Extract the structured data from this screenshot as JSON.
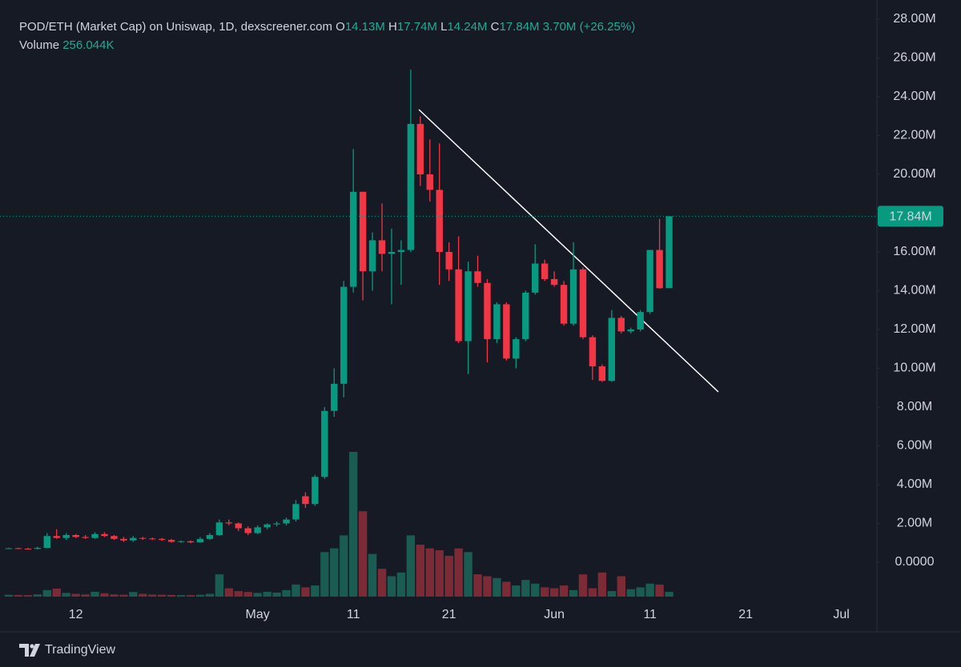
{
  "header": {
    "title": "POD/ETH (Market Cap) on Uniswap, 1D, dexscreener.com",
    "ohlc": [
      {
        "key": "O",
        "value": "14.13M"
      },
      {
        "key": "H",
        "value": "17.74M"
      },
      {
        "key": "L",
        "value": "14.24M"
      },
      {
        "key": "C",
        "value": "17.84M"
      }
    ],
    "change": "3.70M (+26.25%)",
    "volume_key": "Volume",
    "volume_value": "256.044K"
  },
  "chart_data": {
    "type": "candlestick",
    "categories": [
      null,
      null,
      null,
      null,
      null,
      null,
      null,
      "12",
      null,
      null,
      null,
      null,
      null,
      null,
      null,
      null,
      null,
      null,
      null,
      null,
      null,
      null,
      null,
      null,
      null,
      null,
      "May",
      null,
      null,
      null,
      null,
      null,
      null,
      null,
      null,
      null,
      "11",
      null,
      null,
      null,
      null,
      null,
      null,
      null,
      null,
      null,
      "21",
      null,
      null,
      null,
      null,
      null,
      null,
      null,
      null,
      null,
      null,
      "Jun",
      null,
      null,
      null,
      null,
      null,
      null,
      null,
      null,
      null,
      "11",
      null,
      null,
      null,
      null,
      null,
      null,
      null,
      null,
      null,
      "21",
      null,
      null,
      null,
      null,
      null,
      null,
      null,
      null,
      null,
      "Jul",
      null,
      null
    ],
    "open": [
      0.7,
      0.72,
      0.7,
      0.69,
      0.74,
      1.35,
      1.25,
      1.4,
      1.3,
      1.25,
      1.45,
      1.35,
      1.2,
      1.12,
      1.25,
      1.22,
      1.2,
      1.15,
      1.05,
      1.08,
      1.02,
      1.2,
      1.4,
      2.05,
      2.0,
      1.75,
      1.5,
      1.8,
      1.95,
      2.0,
      2.2,
      3.4,
      3.0,
      4.4,
      7.8,
      9.2,
      14.2,
      19.1,
      15.0,
      16.6,
      15.9,
      16.0,
      16.1,
      22.6,
      20.0,
      19.2,
      16.0,
      15.1,
      11.4,
      15.0,
      14.4,
      11.5,
      13.3,
      10.5,
      11.5,
      13.9,
      15.4,
      14.6,
      14.3,
      12.3,
      15.1,
      11.6,
      10.1,
      9.35,
      12.6,
      11.9,
      12.0,
      12.9,
      16.1,
      14.13,
      null,
      null,
      null,
      null,
      null,
      null,
      null,
      null,
      null,
      null,
      null,
      null,
      null,
      null,
      null,
      null,
      null,
      null,
      null,
      null
    ],
    "high": [
      0.75,
      0.75,
      0.74,
      0.8,
      1.5,
      1.7,
      1.5,
      1.45,
      1.4,
      1.55,
      1.55,
      1.4,
      1.3,
      1.35,
      1.3,
      1.28,
      1.25,
      1.2,
      1.12,
      1.12,
      1.3,
      1.5,
      2.2,
      2.2,
      2.05,
      1.85,
      1.9,
      2.0,
      2.1,
      2.3,
      3.2,
      3.6,
      4.5,
      8.0,
      10.0,
      14.5,
      21.3,
      19.1,
      17.0,
      18.5,
      17.2,
      16.6,
      25.4,
      23.0,
      21.8,
      21.6,
      16.5,
      16.8,
      15.5,
      15.8,
      14.6,
      13.4,
      13.4,
      11.6,
      14.0,
      16.4,
      15.6,
      15.0,
      14.5,
      16.5,
      15.2,
      11.7,
      10.2,
      13.0,
      12.7,
      12.1,
      13.0,
      16.1,
      17.7,
      17.74,
      null,
      null,
      null,
      null,
      null,
      null,
      null,
      null,
      null,
      null,
      null,
      null,
      null,
      null,
      null,
      null,
      null,
      null,
      null,
      null
    ],
    "low": [
      0.68,
      0.68,
      0.67,
      0.66,
      0.72,
      1.2,
      1.15,
      1.25,
      1.2,
      1.2,
      1.3,
      1.15,
      1.05,
      1.05,
      1.15,
      1.15,
      1.1,
      1.0,
      1.0,
      0.98,
      1.0,
      1.15,
      1.35,
      1.9,
      1.6,
      1.4,
      1.45,
      1.7,
      1.85,
      1.9,
      2.1,
      2.8,
      2.9,
      4.3,
      7.5,
      8.5,
      13.9,
      13.5,
      14.0,
      15.0,
      13.3,
      14.3,
      16.0,
      19.4,
      18.6,
      14.3,
      14.5,
      11.3,
      9.7,
      14.2,
      10.3,
      11.3,
      10.4,
      10.0,
      11.4,
      13.8,
      14.5,
      14.2,
      12.2,
      12.2,
      11.5,
      9.4,
      9.3,
      9.3,
      11.8,
      11.8,
      11.9,
      12.8,
      14.1,
      14.24,
      null,
      null,
      null,
      null,
      null,
      null,
      null,
      null,
      null,
      null,
      null,
      null,
      null,
      null,
      null,
      null,
      null,
      null,
      null,
      null
    ],
    "close": [
      0.72,
      0.7,
      0.69,
      0.74,
      1.35,
      1.25,
      1.4,
      1.3,
      1.25,
      1.45,
      1.35,
      1.2,
      1.12,
      1.25,
      1.22,
      1.2,
      1.15,
      1.05,
      1.08,
      1.02,
      1.2,
      1.4,
      2.05,
      2.0,
      1.75,
      1.5,
      1.8,
      1.95,
      2.0,
      2.2,
      3.0,
      3.0,
      4.4,
      7.8,
      9.2,
      14.2,
      19.1,
      15.0,
      16.6,
      15.9,
      16.0,
      16.1,
      22.6,
      20.0,
      19.2,
      16.0,
      15.1,
      11.4,
      15.0,
      14.4,
      11.5,
      13.3,
      10.5,
      11.5,
      13.9,
      15.4,
      14.6,
      14.3,
      12.3,
      15.1,
      11.6,
      10.1,
      9.35,
      12.6,
      11.9,
      12.0,
      12.9,
      16.1,
      14.13,
      17.84,
      null,
      null,
      null,
      null,
      null,
      null,
      null,
      null,
      null,
      null,
      null,
      null,
      null,
      null,
      null,
      null,
      null,
      null,
      null,
      null
    ],
    "volume": [
      100,
      90,
      80,
      120,
      350,
      430,
      200,
      150,
      120,
      260,
      180,
      120,
      100,
      250,
      150,
      110,
      100,
      90,
      80,
      80,
      100,
      150,
      1200,
      450,
      300,
      250,
      200,
      260,
      220,
      350,
      650,
      500,
      600,
      2400,
      2600,
      3300,
      7800,
      4600,
      2300,
      1500,
      1100,
      1300,
      3300,
      2800,
      2600,
      2500,
      2200,
      2600,
      2400,
      1200,
      1100,
      1000,
      800,
      600,
      900,
      700,
      500,
      450,
      600,
      350,
      1200,
      450,
      1300,
      300,
      1100,
      400,
      500,
      700,
      650,
      256.044,
      null,
      null,
      null,
      null,
      null,
      null,
      null,
      null,
      null,
      null,
      null,
      null,
      null,
      null,
      null,
      null,
      null,
      null,
      null,
      null
    ],
    "up_color": "#089981",
    "down_color": "#f23645",
    "volume_up_color": "#1a5b52",
    "volume_down_color": "#7c2b36",
    "ylim": [
      -3.59,
      28.99
    ],
    "yticks": [
      {
        "value": 0,
        "label": "0.0000"
      },
      {
        "value": 2,
        "label": "2.00M"
      },
      {
        "value": 4,
        "label": "4.00M"
      },
      {
        "value": 6,
        "label": "6.00M"
      },
      {
        "value": 8,
        "label": "8.00M"
      },
      {
        "value": 10,
        "label": "10.00M"
      },
      {
        "value": 12,
        "label": "12.00M"
      },
      {
        "value": 14,
        "label": "14.00M"
      },
      {
        "value": 16,
        "label": "16.00M"
      },
      {
        "value": 20,
        "label": "20.00M"
      },
      {
        "value": 22,
        "label": "22.00M"
      },
      {
        "value": 24,
        "label": "24.00M"
      },
      {
        "value": 26,
        "label": "26.00M"
      },
      {
        "value": 28,
        "label": "28.00M"
      }
    ],
    "last_price": {
      "value": 17.84,
      "label": "17.84M"
    }
  },
  "footer": {
    "brand": "TradingView"
  }
}
